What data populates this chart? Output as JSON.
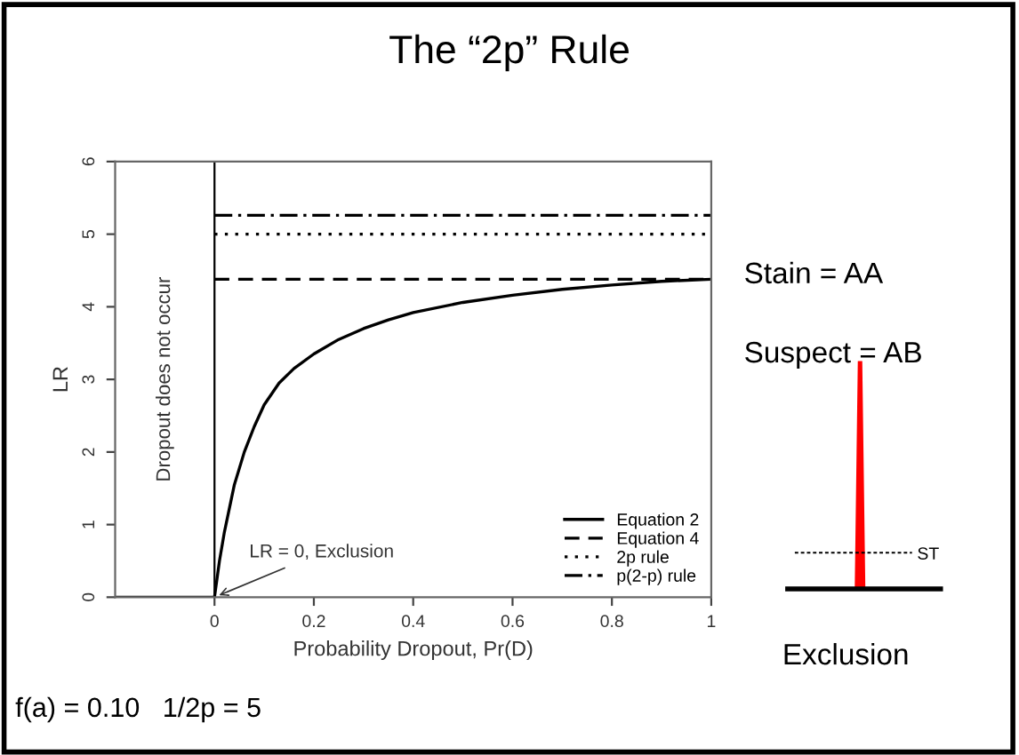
{
  "chart_data": {
    "type": "line",
    "title": "The “2p” Rule",
    "xlabel": "Probability Dropout, Pr(D)",
    "ylabel": "LR",
    "xlim": [
      -0.2,
      1.0
    ],
    "ylim": [
      0,
      6
    ],
    "xticks": [
      0,
      0.2,
      0.4,
      0.6,
      0.8,
      1
    ],
    "yticks": [
      0,
      1,
      2,
      3,
      4,
      5,
      6
    ],
    "series": [
      {
        "name": "Equation 2",
        "color": "#000000",
        "line_style": "solid",
        "x": [
          -0.2,
          0,
          0.01,
          0.02,
          0.04,
          0.06,
          0.08,
          0.1,
          0.13,
          0.16,
          0.2,
          0.25,
          0.3,
          0.35,
          0.4,
          0.5,
          0.6,
          0.7,
          0.8,
          0.9,
          1.0
        ],
        "values": [
          0,
          0,
          0.5,
          0.9,
          1.55,
          2.0,
          2.35,
          2.65,
          2.95,
          3.15,
          3.35,
          3.55,
          3.7,
          3.82,
          3.92,
          4.06,
          4.16,
          4.24,
          4.3,
          4.35,
          4.38
        ]
      },
      {
        "name": "Equation 4",
        "color": "#000000",
        "line_style": "dashed",
        "x": [
          0,
          1.0
        ],
        "values": [
          4.38,
          4.38
        ]
      },
      {
        "name": "2p rule",
        "color": "#000000",
        "line_style": "dotted",
        "x": [
          0,
          1.0
        ],
        "values": [
          5.0,
          5.0
        ]
      },
      {
        "name": "p(2-p) rule",
        "color": "#000000",
        "line_style": "dashdot",
        "x": [
          0,
          1.0
        ],
        "values": [
          5.26,
          5.26
        ]
      }
    ],
    "ref_lines": [
      {
        "axis": "x",
        "value": 0,
        "color": "#000000"
      }
    ],
    "annotations": [
      "Dropout does not occur",
      {
        "text": "LR = 0, Exclusion",
        "x": 0,
        "y": 0
      },
      "Stain = AA",
      "Suspect = AB",
      "ST",
      "Exclusion",
      "f(a) = 0.10   1/2p = 5"
    ],
    "legend": "bottom right",
    "grid": false
  }
}
